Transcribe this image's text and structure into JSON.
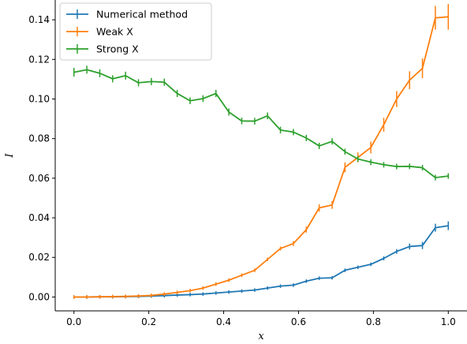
{
  "chart_data": {
    "type": "line",
    "xlabel": "x",
    "ylabel": "I",
    "xlim": [
      -0.05,
      1.05
    ],
    "ylim": [
      -0.007,
      0.15
    ],
    "xticks": [
      0.0,
      0.2,
      0.4,
      0.6,
      0.8,
      1.0
    ],
    "xtick_labels": [
      "0.0",
      "0.2",
      "0.4",
      "0.6",
      "0.8",
      "1.0"
    ],
    "yticks": [
      0.0,
      0.02,
      0.04,
      0.06,
      0.08,
      0.1,
      0.12,
      0.14
    ],
    "ytick_labels": [
      "0.00",
      "0.02",
      "0.04",
      "0.06",
      "0.08",
      "0.10",
      "0.12",
      "0.14"
    ],
    "grid": false,
    "legend_position": "top-left",
    "x": [
      0.0,
      0.0345,
      0.069,
      0.1034,
      0.1379,
      0.1724,
      0.2069,
      0.2414,
      0.2759,
      0.3103,
      0.3448,
      0.3793,
      0.4138,
      0.4483,
      0.4828,
      0.5172,
      0.5517,
      0.5862,
      0.6207,
      0.6552,
      0.6897,
      0.7241,
      0.7586,
      0.7931,
      0.8276,
      0.8621,
      0.8966,
      0.931,
      0.9655,
      1.0
    ],
    "series": [
      {
        "name": "Numerical method",
        "color": "#1f77b4",
        "values": [
          0.0,
          0.0,
          0.0001,
          0.0001,
          0.0002,
          0.0003,
          0.0005,
          0.0007,
          0.001,
          0.0012,
          0.0015,
          0.002,
          0.0025,
          0.003,
          0.0035,
          0.0045,
          0.0055,
          0.006,
          0.008,
          0.0095,
          0.0097,
          0.0135,
          0.015,
          0.0165,
          0.0195,
          0.023,
          0.0255,
          0.026,
          0.035,
          0.036
        ],
        "errors": [
          0.0,
          0.0,
          0.0,
          0.0,
          0.0,
          0.0,
          0.0,
          0.0,
          0.0,
          0.0,
          0.0,
          0.0,
          0.0,
          0.0,
          0.0,
          0.0,
          0.0003,
          0.0003,
          0.0005,
          0.0005,
          0.0005,
          0.0007,
          0.0007,
          0.0008,
          0.001,
          0.0012,
          0.0015,
          0.0018,
          0.002,
          0.0022
        ]
      },
      {
        "name": "Weak X",
        "color": "#ff7f0e",
        "values": [
          0.0,
          0.0,
          0.0001,
          0.0002,
          0.0003,
          0.0005,
          0.0008,
          0.0015,
          0.0023,
          0.0032,
          0.0045,
          0.0065,
          0.0085,
          0.011,
          0.0135,
          0.019,
          0.0245,
          0.027,
          0.034,
          0.045,
          0.0465,
          0.0655,
          0.0705,
          0.0755,
          0.087,
          0.1,
          0.1095,
          0.1155,
          0.141,
          0.1415
        ],
        "errors": [
          0.0,
          0.0,
          0.0,
          0.0,
          0.0,
          0.0,
          0.0,
          0.0,
          0.0,
          0.0,
          0.0,
          0.0003,
          0.0004,
          0.0005,
          0.0006,
          0.0008,
          0.001,
          0.0012,
          0.0015,
          0.0018,
          0.002,
          0.0025,
          0.0025,
          0.003,
          0.0035,
          0.004,
          0.0045,
          0.005,
          0.006,
          0.0065
        ]
      },
      {
        "name": "Strong X",
        "color": "#2ca02c",
        "values": [
          0.1135,
          0.1148,
          0.113,
          0.1102,
          0.1118,
          0.1082,
          0.1088,
          0.1085,
          0.1028,
          0.0991,
          0.1002,
          0.1028,
          0.0934,
          0.0889,
          0.0888,
          0.0915,
          0.0843,
          0.0833,
          0.0803,
          0.0763,
          0.0786,
          0.0734,
          0.0697,
          0.0681,
          0.0668,
          0.0659,
          0.066,
          0.0653,
          0.0603,
          0.0611
        ],
        "errors": [
          0.0022,
          0.002,
          0.002,
          0.0018,
          0.002,
          0.0018,
          0.0018,
          0.0018,
          0.0018,
          0.0017,
          0.0017,
          0.0018,
          0.0018,
          0.0017,
          0.0017,
          0.0017,
          0.0017,
          0.0016,
          0.0016,
          0.0016,
          0.0016,
          0.0015,
          0.0015,
          0.0015,
          0.0014,
          0.0014,
          0.0014,
          0.0014,
          0.0014,
          0.0014
        ]
      }
    ]
  }
}
